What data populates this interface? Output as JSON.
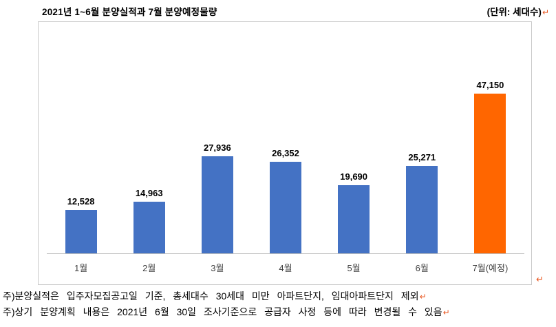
{
  "page": {
    "title": "2021년 1~6월 분양실적과 7월 분양예정물량",
    "unit_label": "(단위: 세대수)",
    "paragraph_mark": "↵",
    "notes": [
      "주)분양실적은 입주자모집공고일 기준, 총세대수 30세대 미만 아파트단지, 임대아파트단지 제외",
      "주)상기 분양계획 내용은 2021년 6월 30일 조사기준으로 공급자 사정 등에 따라 변경될 수 있음"
    ]
  },
  "colors": {
    "bar_blue": "#4472C4",
    "bar_orange": "#FF6600",
    "paragraph_mark": "#E8541D",
    "chart_border": "#C9C9C9",
    "axis_line": "#BFBFBF"
  },
  "chart_data": {
    "type": "bar",
    "title": "2021년 1~6월 분양실적과 7월 분양예정물량",
    "xlabel": "",
    "ylabel": "세대수",
    "categories": [
      "1월",
      "2월",
      "3월",
      "4월",
      "5월",
      "6월",
      "7월(예정)"
    ],
    "values": [
      12528,
      14963,
      27936,
      26352,
      19690,
      25271,
      47150
    ],
    "value_labels": [
      "12,528",
      "14,963",
      "27,936",
      "26,352",
      "19,690",
      "25,271",
      "47,150"
    ],
    "colors": [
      "#4472C4",
      "#4472C4",
      "#4472C4",
      "#4472C4",
      "#4472C4",
      "#4472C4",
      "#FF6600"
    ],
    "ylim": [
      0,
      50000
    ],
    "grid": false,
    "legend": false,
    "data_labels": true,
    "unit": "세대수"
  }
}
